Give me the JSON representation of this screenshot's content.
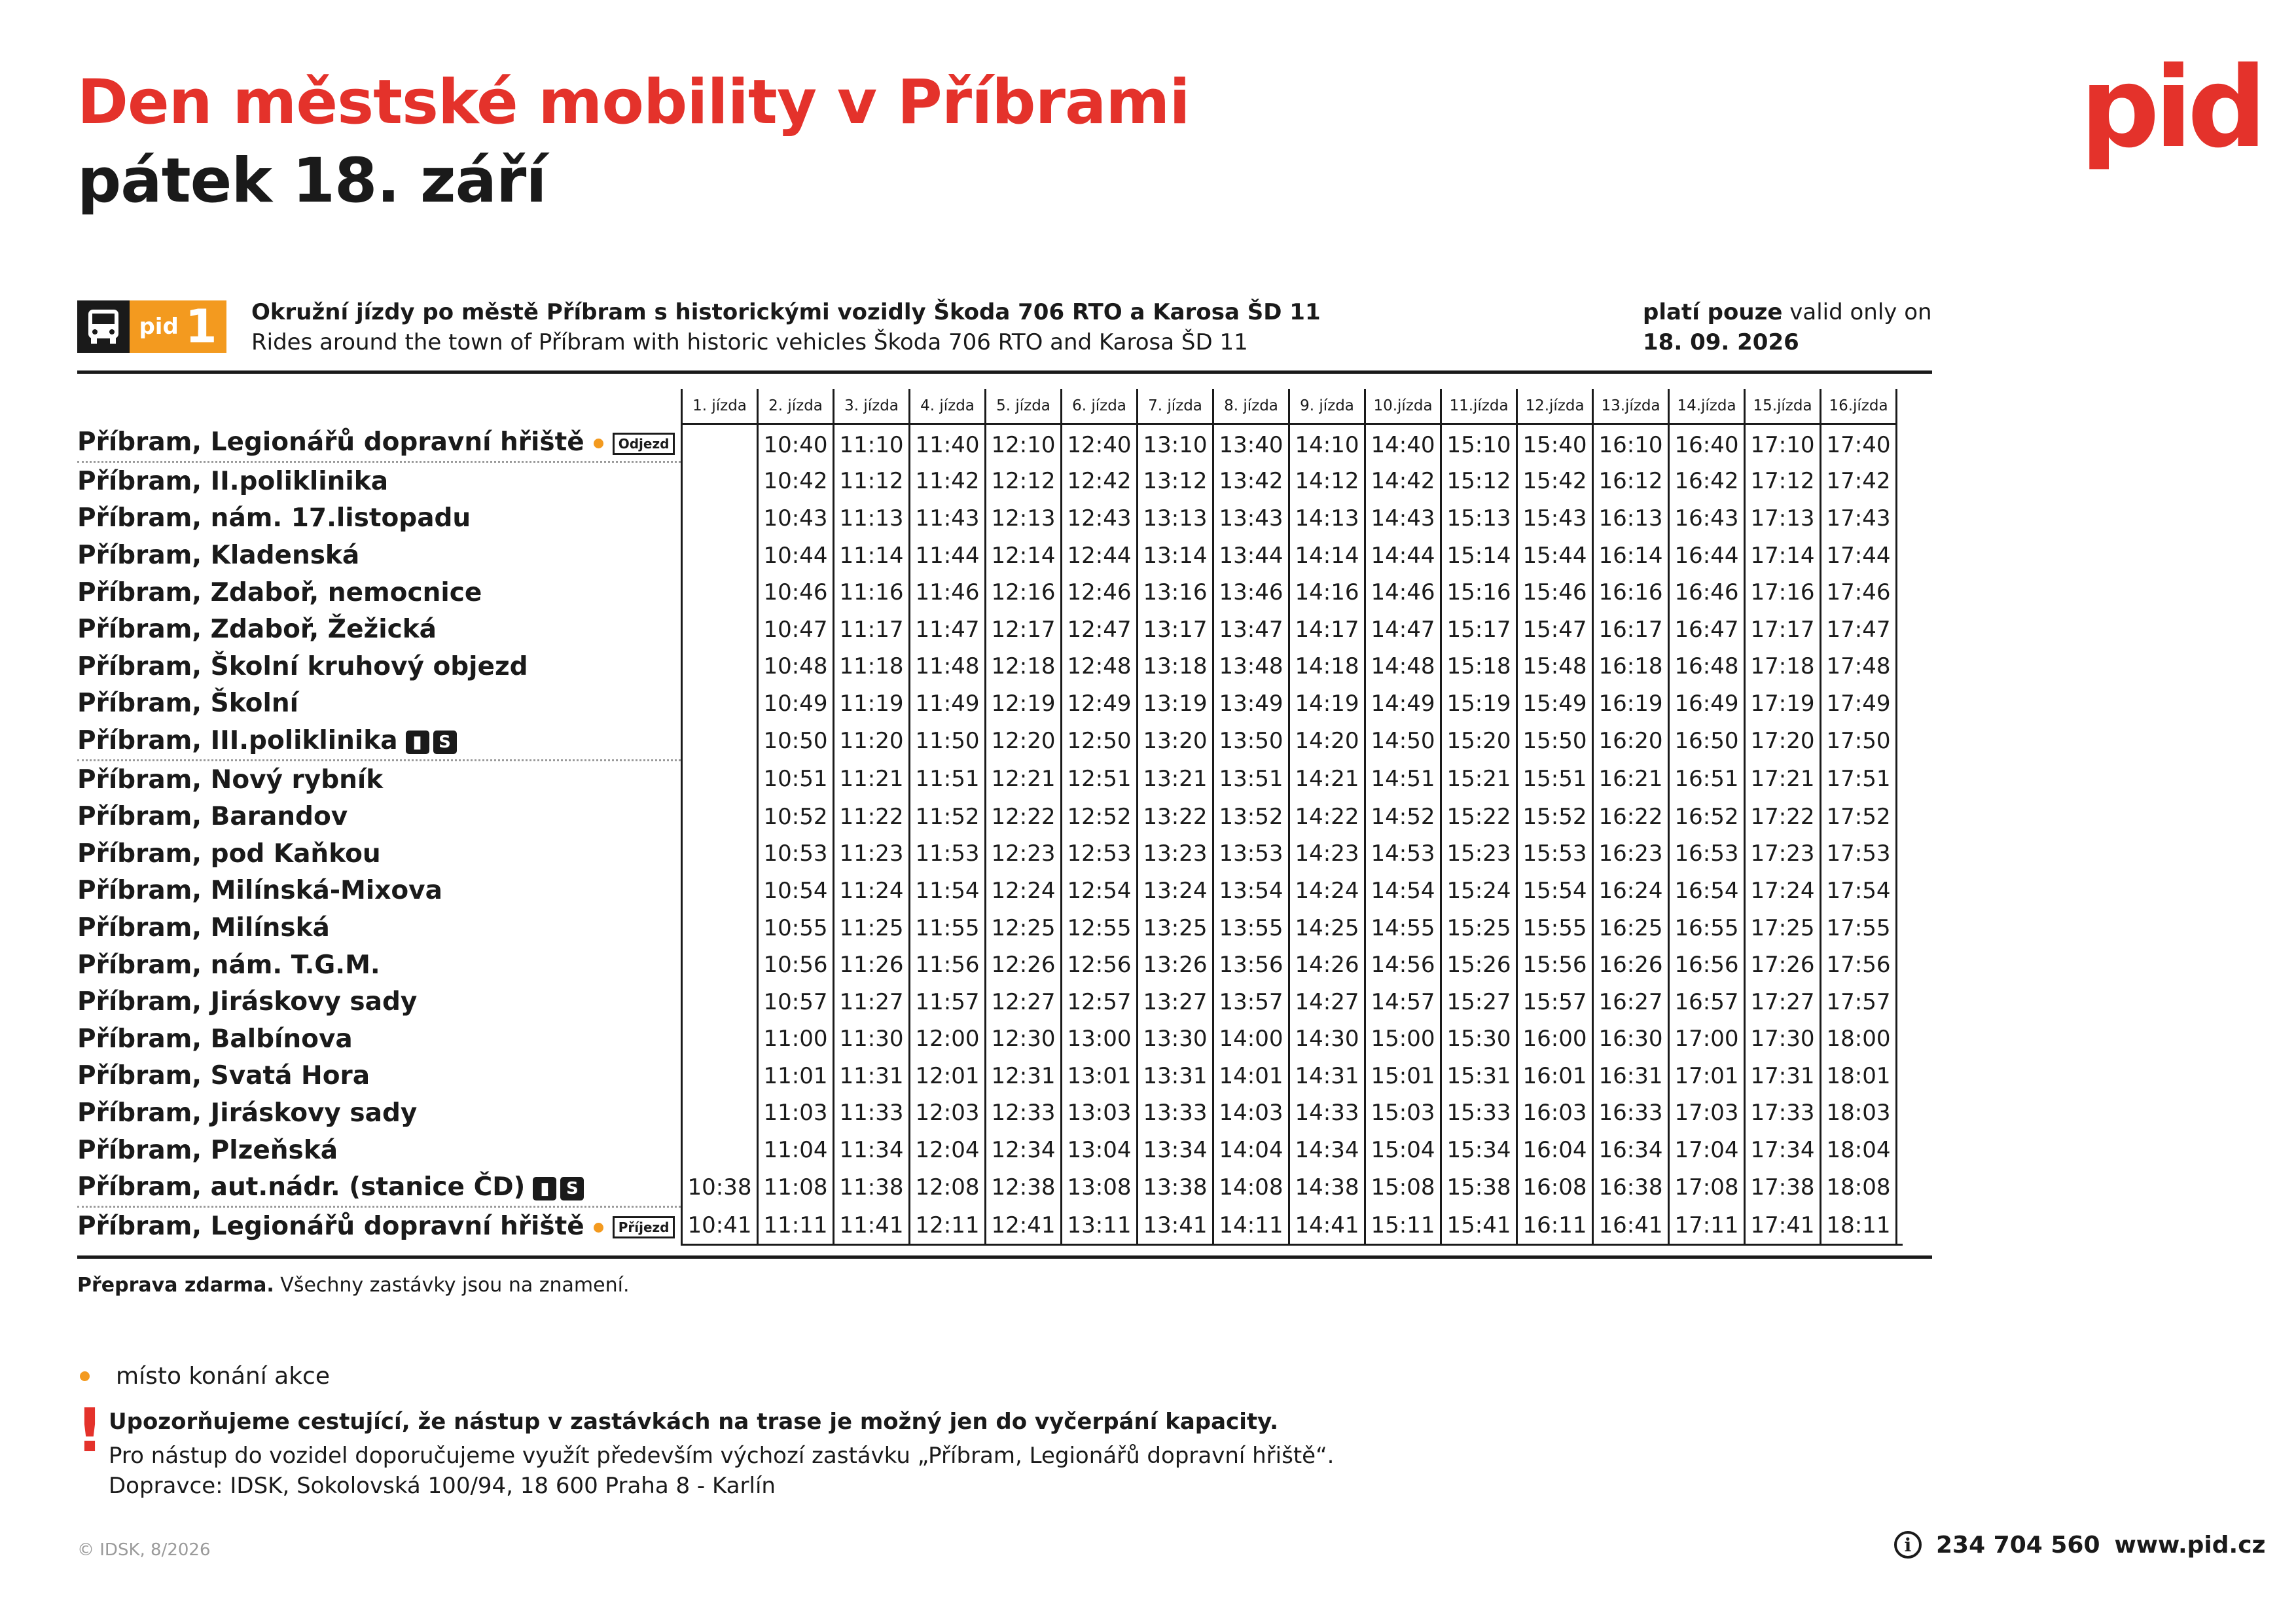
{
  "header": {
    "title": "Den městské mobility v Příbrami",
    "subtitle": "pátek 18. září",
    "logo": "pid",
    "brand_color": "#e4322b",
    "accent_color": "#f39a1f"
  },
  "line": {
    "mode_icon": "bus-icon",
    "badge_prefix": "pid",
    "number": "1",
    "description_cs": "Okružní jízdy po městě Příbram s historickými vozidly Škoda 706 RTO a Karosa ŠD 11",
    "description_en": "Rides around the town of Příbram with historic vehicles Škoda 706 RTO and Karosa ŠD 11",
    "valid_label_cs": "platí pouze",
    "valid_label_en": " valid only on",
    "valid_date": "18. 09. 2026"
  },
  "timetable": {
    "columns": [
      "1. jízda",
      "2. jízda",
      "3. jízda",
      "4. jízda",
      "5. jízda",
      "6. jízda",
      "7. jízda",
      "8. jízda",
      "9. jízda",
      "10.jízda",
      "11.jízda",
      "12.jízda",
      "13.jízda",
      "14.jízda",
      "15.jízda",
      "16.jízda"
    ],
    "rows": [
      {
        "stop": "Příbram, Legionářů dopravní hřiště",
        "event": true,
        "tag": "Odjezd",
        "icons": [],
        "times": [
          "",
          "10:40",
          "11:10",
          "11:40",
          "12:10",
          "12:40",
          "13:10",
          "13:40",
          "14:10",
          "14:40",
          "15:10",
          "15:40",
          "16:10",
          "16:40",
          "17:10",
          "17:40"
        ]
      },
      {
        "stop": "Příbram, II.poliklinika",
        "icons": [],
        "times": [
          "",
          "10:42",
          "11:12",
          "11:42",
          "12:12",
          "12:42",
          "13:12",
          "13:42",
          "14:12",
          "14:42",
          "15:12",
          "15:42",
          "16:12",
          "16:42",
          "17:12",
          "17:42"
        ]
      },
      {
        "stop": "Příbram, nám. 17.listopadu",
        "icons": [],
        "times": [
          "",
          "10:43",
          "11:13",
          "11:43",
          "12:13",
          "12:43",
          "13:13",
          "13:43",
          "14:13",
          "14:43",
          "15:13",
          "15:43",
          "16:13",
          "16:43",
          "17:13",
          "17:43"
        ]
      },
      {
        "stop": "Příbram, Kladenská",
        "icons": [],
        "times": [
          "",
          "10:44",
          "11:14",
          "11:44",
          "12:14",
          "12:44",
          "13:14",
          "13:44",
          "14:14",
          "14:44",
          "15:14",
          "15:44",
          "16:14",
          "16:44",
          "17:14",
          "17:44"
        ]
      },
      {
        "stop": "Příbram, Zdaboř, nemocnice",
        "icons": [],
        "times": [
          "",
          "10:46",
          "11:16",
          "11:46",
          "12:16",
          "12:46",
          "13:16",
          "13:46",
          "14:16",
          "14:46",
          "15:16",
          "15:46",
          "16:16",
          "16:46",
          "17:16",
          "17:46"
        ]
      },
      {
        "stop": "Příbram, Zdaboř, Žežická",
        "icons": [],
        "times": [
          "",
          "10:47",
          "11:17",
          "11:47",
          "12:17",
          "12:47",
          "13:17",
          "13:47",
          "14:17",
          "14:47",
          "15:17",
          "15:47",
          "16:17",
          "16:47",
          "17:17",
          "17:47"
        ]
      },
      {
        "stop": "Příbram, Školní kruhový objezd",
        "icons": [],
        "times": [
          "",
          "10:48",
          "11:18",
          "11:48",
          "12:18",
          "12:48",
          "13:18",
          "13:48",
          "14:18",
          "14:48",
          "15:18",
          "15:48",
          "16:18",
          "16:48",
          "17:18",
          "17:48"
        ]
      },
      {
        "stop": "Příbram, Školní",
        "icons": [],
        "times": [
          "",
          "10:49",
          "11:19",
          "11:49",
          "12:19",
          "12:49",
          "13:19",
          "13:49",
          "14:19",
          "14:49",
          "15:19",
          "15:49",
          "16:19",
          "16:49",
          "17:19",
          "17:49"
        ]
      },
      {
        "stop": "Příbram, III.poliklinika",
        "icons": [
          "train-icon",
          "s-train-icon"
        ],
        "times": [
          "",
          "10:50",
          "11:20",
          "11:50",
          "12:20",
          "12:50",
          "13:20",
          "13:50",
          "14:20",
          "14:50",
          "15:20",
          "15:50",
          "16:20",
          "16:50",
          "17:20",
          "17:50"
        ]
      },
      {
        "stop": "Příbram, Nový rybník",
        "icons": [],
        "times": [
          "",
          "10:51",
          "11:21",
          "11:51",
          "12:21",
          "12:51",
          "13:21",
          "13:51",
          "14:21",
          "14:51",
          "15:21",
          "15:51",
          "16:21",
          "16:51",
          "17:21",
          "17:51"
        ]
      },
      {
        "stop": "Příbram, Barandov",
        "icons": [],
        "times": [
          "",
          "10:52",
          "11:22",
          "11:52",
          "12:22",
          "12:52",
          "13:22",
          "13:52",
          "14:22",
          "14:52",
          "15:22",
          "15:52",
          "16:22",
          "16:52",
          "17:22",
          "17:52"
        ]
      },
      {
        "stop": "Příbram, pod Kaňkou",
        "icons": [],
        "times": [
          "",
          "10:53",
          "11:23",
          "11:53",
          "12:23",
          "12:53",
          "13:23",
          "13:53",
          "14:23",
          "14:53",
          "15:23",
          "15:53",
          "16:23",
          "16:53",
          "17:23",
          "17:53"
        ]
      },
      {
        "stop": "Příbram, Milínská-Mixova",
        "icons": [],
        "times": [
          "",
          "10:54",
          "11:24",
          "11:54",
          "12:24",
          "12:54",
          "13:24",
          "13:54",
          "14:24",
          "14:54",
          "15:24",
          "15:54",
          "16:24",
          "16:54",
          "17:24",
          "17:54"
        ]
      },
      {
        "stop": "Příbram, Milínská",
        "icons": [],
        "times": [
          "",
          "10:55",
          "11:25",
          "11:55",
          "12:25",
          "12:55",
          "13:25",
          "13:55",
          "14:25",
          "14:55",
          "15:25",
          "15:55",
          "16:25",
          "16:55",
          "17:25",
          "17:55"
        ]
      },
      {
        "stop": "Příbram, nám. T.G.M.",
        "icons": [],
        "times": [
          "",
          "10:56",
          "11:26",
          "11:56",
          "12:26",
          "12:56",
          "13:26",
          "13:56",
          "14:26",
          "14:56",
          "15:26",
          "15:56",
          "16:26",
          "16:56",
          "17:26",
          "17:56"
        ]
      },
      {
        "stop": "Příbram, Jiráskovy sady",
        "icons": [],
        "times": [
          "",
          "10:57",
          "11:27",
          "11:57",
          "12:27",
          "12:57",
          "13:27",
          "13:57",
          "14:27",
          "14:57",
          "15:27",
          "15:57",
          "16:27",
          "16:57",
          "17:27",
          "17:57"
        ]
      },
      {
        "stop": "Příbram, Balbínova",
        "icons": [],
        "times": [
          "",
          "11:00",
          "11:30",
          "12:00",
          "12:30",
          "13:00",
          "13:30",
          "14:00",
          "14:30",
          "15:00",
          "15:30",
          "16:00",
          "16:30",
          "17:00",
          "17:30",
          "18:00"
        ]
      },
      {
        "stop": "Příbram, Svatá Hora",
        "icons": [],
        "times": [
          "",
          "11:01",
          "11:31",
          "12:01",
          "12:31",
          "13:01",
          "13:31",
          "14:01",
          "14:31",
          "15:01",
          "15:31",
          "16:01",
          "16:31",
          "17:01",
          "17:31",
          "18:01"
        ]
      },
      {
        "stop": "Příbram, Jiráskovy sady",
        "icons": [],
        "times": [
          "",
          "11:03",
          "11:33",
          "12:03",
          "12:33",
          "13:03",
          "13:33",
          "14:03",
          "14:33",
          "15:03",
          "15:33",
          "16:03",
          "16:33",
          "17:03",
          "17:33",
          "18:03"
        ]
      },
      {
        "stop": "Příbram, Plzeňská",
        "icons": [],
        "times": [
          "",
          "11:04",
          "11:34",
          "12:04",
          "12:34",
          "13:04",
          "13:34",
          "14:04",
          "14:34",
          "15:04",
          "15:34",
          "16:04",
          "16:34",
          "17:04",
          "17:34",
          "18:04"
        ]
      },
      {
        "stop": "Příbram, aut.nádr. (stanice ČD)",
        "icons": [
          "train-icon",
          "s-train-icon"
        ],
        "times": [
          "10:38",
          "11:08",
          "11:38",
          "12:08",
          "12:38",
          "13:08",
          "13:38",
          "14:08",
          "14:38",
          "15:08",
          "15:38",
          "16:08",
          "16:38",
          "17:08",
          "17:38",
          "18:08"
        ]
      },
      {
        "stop": "Příbram, Legionářů dopravní hřiště",
        "event": true,
        "tag": "Příjezd",
        "icons": [],
        "times": [
          "10:41",
          "11:11",
          "11:41",
          "12:11",
          "12:41",
          "13:11",
          "13:41",
          "14:11",
          "14:41",
          "15:11",
          "15:41",
          "16:11",
          "16:41",
          "17:11",
          "17:41",
          "18:11"
        ]
      }
    ]
  },
  "notes": {
    "free_bold": "Přeprava zdarma.",
    "free_rest": " Všechny zastávky jsou na znamení.",
    "legend_event": "místo konání akce",
    "warning_mark": "!",
    "warning_bold": "Upozorňujeme cestující, že nástup v zastávkách na trase je možný jen do vyčerpání kapacity.",
    "warning_text": "Pro nástup do vozidel doporučujeme využít především výchozí zastávku „Příbram, Legionářů dopravní hřiště“.",
    "operator": "Dopravce: IDSK, Sokolovská 100/94, 18 600 Praha 8 - Karlín"
  },
  "footer": {
    "copyright": "© IDSK, 8/2026",
    "info_icon": "info-icon",
    "phone": "234 704 560",
    "web": "www.pid.cz"
  }
}
